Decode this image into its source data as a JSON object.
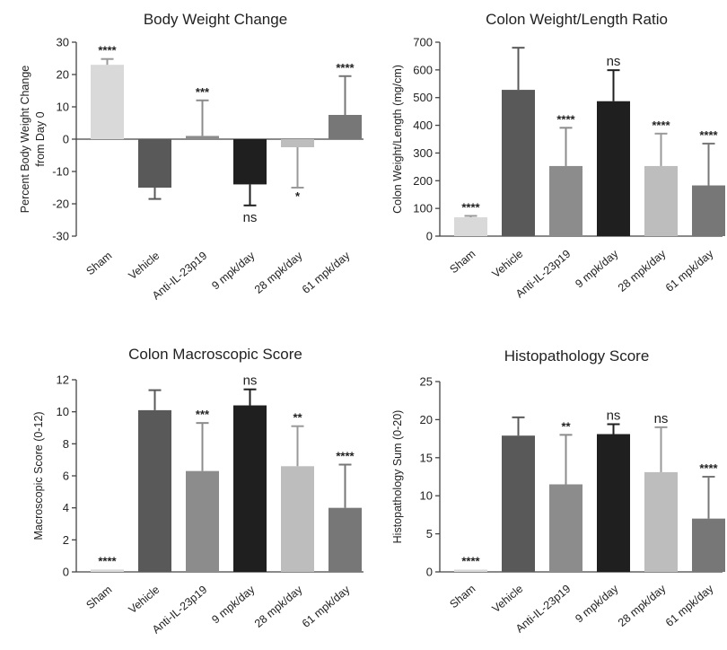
{
  "chart_data": [
    {
      "type": "bar",
      "title": "Body Weight Change",
      "ylabel": "Percent Body Weight Change\nfrom Day 0",
      "xlabel": "",
      "ylim": [
        -30,
        30
      ],
      "yticks": [
        -30,
        -20,
        -10,
        0,
        10,
        20,
        30
      ],
      "categories": [
        "Sham",
        "Vehicle",
        "Anti-IL-23p19",
        "9 mpk/day",
        "28 mpk/day",
        "61 mpk/day"
      ],
      "values": [
        23,
        -15,
        1,
        -14,
        -2.5,
        7.5
      ],
      "error": [
        1.8,
        3.5,
        11,
        6.5,
        12.5,
        12
      ],
      "annotations": [
        "****",
        "",
        "***",
        "ns",
        "*",
        "****"
      ],
      "grid": false
    },
    {
      "type": "bar",
      "title": "Colon Weight/Length Ratio",
      "ylabel": "Colon Weight/Length (mg/cm)",
      "xlabel": "",
      "ylim": [
        0,
        700
      ],
      "yticks": [
        0,
        100,
        200,
        300,
        400,
        500,
        600,
        700
      ],
      "categories": [
        "Sham",
        "Vehicle",
        "Anti-IL-23p19",
        "9 mpk/day",
        "28 mpk/day",
        "61 mpk/day"
      ],
      "values": [
        68,
        528,
        253,
        487,
        253,
        183
      ],
      "error": [
        5,
        152,
        138,
        112,
        117,
        151
      ],
      "annotations": [
        "****",
        "",
        "****",
        "ns",
        "****",
        "****"
      ],
      "grid": false
    },
    {
      "type": "bar",
      "title": "Colon Macroscopic Score",
      "ylabel": "Macroscopic Score (0-12)",
      "xlabel": "",
      "ylim": [
        0,
        12
      ],
      "yticks": [
        0,
        2,
        4,
        6,
        8,
        10,
        12
      ],
      "categories": [
        "Sham",
        "Vehicle",
        "Anti-IL-23p19",
        "9 mpk/day",
        "28 mpk/day",
        "61 mpk/day"
      ],
      "values": [
        0.15,
        10.1,
        6.3,
        10.4,
        6.6,
        4
      ],
      "error": [
        0,
        1.25,
        3,
        1,
        2.5,
        2.7
      ],
      "annotations": [
        "****",
        "",
        "***",
        "ns",
        "**",
        "****"
      ],
      "grid": false
    },
    {
      "type": "bar",
      "title": "Histopathology Score",
      "ylabel": "Histopathology Sum (0-20)",
      "xlabel": "",
      "ylim": [
        0,
        25
      ],
      "yticks": [
        0,
        5,
        10,
        15,
        20,
        25
      ],
      "categories": [
        "Sham",
        "Vehicle",
        "Anti-IL-23p19",
        "9 mpk/day",
        "28 mpk/day",
        "61 mpk/day"
      ],
      "values": [
        0.3,
        17.9,
        11.5,
        18.1,
        13.1,
        7
      ],
      "error": [
        0,
        2.4,
        6.5,
        1.3,
        5.9,
        5.5
      ],
      "annotations": [
        "****",
        "",
        "**",
        "ns",
        "ns",
        "****"
      ],
      "grid": false
    }
  ],
  "colors": {
    "bars": [
      "#d9d9d9",
      "#595959",
      "#8c8c8c",
      "#1f1f1f",
      "#bdbdbd",
      "#777777"
    ],
    "axis": "#444444",
    "text": "#222222"
  }
}
